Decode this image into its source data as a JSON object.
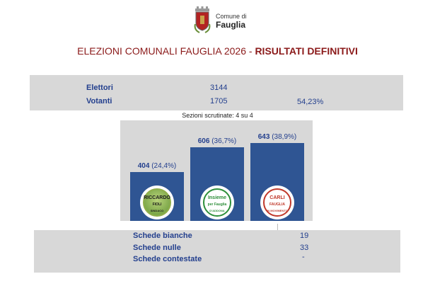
{
  "header": {
    "comune_prefix": "Comune di",
    "comune_name": "Fauglia"
  },
  "title": {
    "main": "ELEZIONI COMUNALI FAUGLIA 2026 - ",
    "emph": "RISULTATI DEFINITIVI"
  },
  "turnout": {
    "elettori_label": "Elettori",
    "elettori_value": "3144",
    "votanti_label": "Votanti",
    "votanti_value": "1705",
    "votanti_pct": "54,23%"
  },
  "sezioni": "Sezioni scrutinate: 4 su 4",
  "chart_data": {
    "type": "bar",
    "values": [
      404,
      606,
      643
    ],
    "percentages": [
      "24,4%",
      "36,7%",
      "38,9%"
    ],
    "value_labels": [
      "404",
      "606",
      "643"
    ],
    "pct_labels": [
      "(24,4%)",
      "(36,7%)",
      "(38,9%)"
    ],
    "logo_texts": [
      [
        "RICCARDO",
        "FIOLI",
        "SINDACO"
      ],
      [
        "Insieme",
        "per Fauglia",
        "D'ADDONA"
      ],
      [
        "CARLI",
        "FAUGLIA",
        "IN MOVIMENTO"
      ]
    ],
    "colors": {
      "bar": "#2f5593",
      "label": "#24408e"
    }
  },
  "schede": {
    "bianche_label": "Schede bianche",
    "bianche_value": "19",
    "nulle_label": "Schede nulle",
    "nulle_value": "33",
    "contestate_label": "Schede contestate",
    "contestate_value": "-"
  }
}
